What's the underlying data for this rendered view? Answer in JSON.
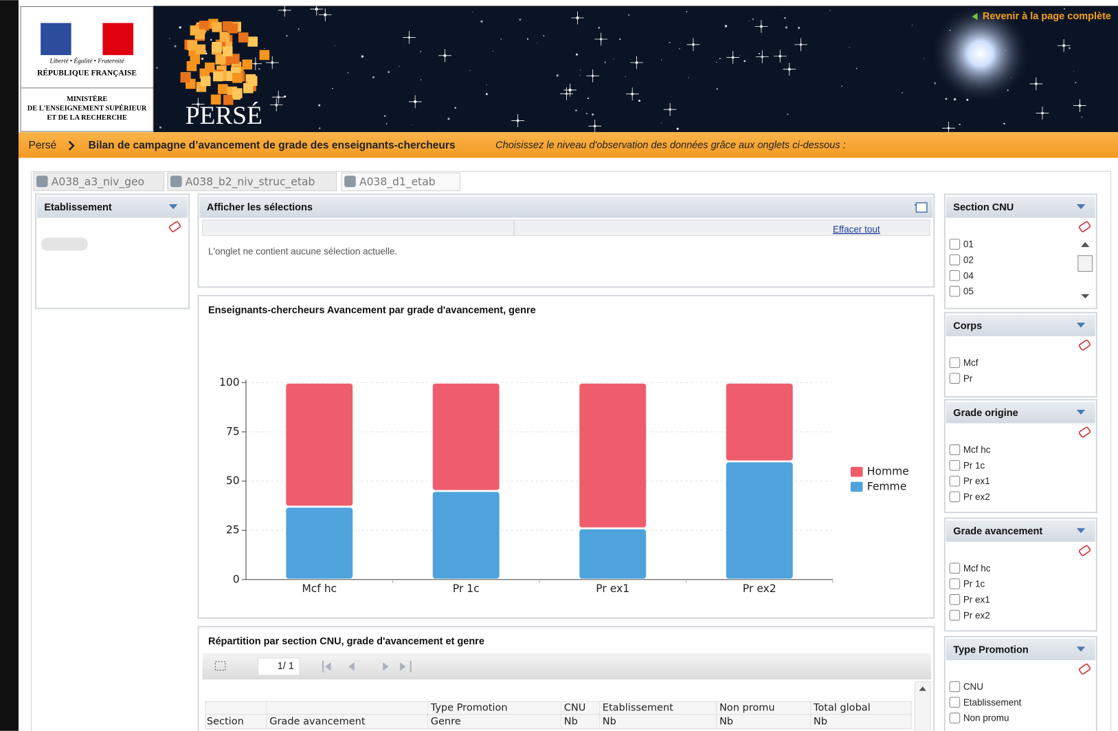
{
  "header": {
    "motto": "Liberté • Égalité • Fraternité",
    "republic": "RÉPUBLIQUE FRANÇAISE",
    "ministry": [
      "MINISTÈRE",
      "DE L'ENSEIGNEMENT SUPÉRIEUR",
      "ET DE LA RECHERCHE"
    ],
    "app_name": "PERSÉ",
    "back_link": "Revenir à la page complète"
  },
  "breadcrumb": {
    "home": "Persé",
    "title": "Bilan de campagne d’avancement de grade des enseignants-chercheurs",
    "hint": "Choisissez le niveau d'observation des données grâce aux onglets ci-dessous :"
  },
  "tabs": [
    "A038_a3_niv_geo",
    "A038_b2_niv_struc_etab",
    "A038_d1_etab"
  ],
  "left_panel": {
    "title": "Etablissement"
  },
  "selections": {
    "title": "Afficher les sélections",
    "clear": "Effacer tout",
    "message": "L'onglet ne contient aucune sélection actuelle."
  },
  "chart_data": {
    "type": "bar",
    "stacked": true,
    "title": "Enseignants-chercheurs Avancement par grade d'avancement, genre",
    "categories": [
      "Mcf hc",
      "Pr 1c",
      "Pr ex1",
      "Pr ex2"
    ],
    "series": [
      {
        "name": "Femme",
        "color": "#4fa3dc",
        "values": [
          37,
          45,
          26,
          60
        ]
      },
      {
        "name": "Homme",
        "color": "#ef5d6d",
        "values": [
          63,
          55,
          74,
          40
        ]
      }
    ],
    "ylim": [
      0,
      100
    ],
    "yticks": [
      0,
      25,
      50,
      75,
      100
    ],
    "grid": true,
    "legend": "right"
  },
  "table": {
    "title": "Répartition par section CNU, grade d'avancement et genre",
    "pager": "1/ 1",
    "header_top": [
      "Type Promotion",
      "CNU",
      "Etablissement",
      "Non promu",
      "Total global"
    ],
    "header_bottom": [
      "Section",
      "Grade avancement",
      "Genre",
      "Nb",
      "Nb",
      "Nb",
      "Nb"
    ]
  },
  "filters": [
    {
      "title": "Section CNU",
      "items": [
        "01",
        "02",
        "04",
        "05"
      ]
    },
    {
      "title": "Corps",
      "items": [
        "Mcf",
        "Pr"
      ]
    },
    {
      "title": "Grade origine",
      "items": [
        "Mcf hc",
        "Pr 1c",
        "Pr ex1",
        "Pr ex2"
      ]
    },
    {
      "title": "Grade avancement",
      "items": [
        "Mcf hc",
        "Pr 1c",
        "Pr ex1",
        "Pr ex2"
      ]
    },
    {
      "title": "Type Promotion",
      "items": [
        "CNU",
        "Etablissement",
        "Non promu"
      ]
    }
  ]
}
